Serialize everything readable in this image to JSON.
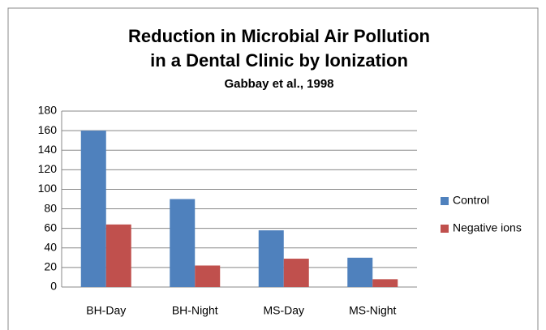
{
  "chart_data": {
    "type": "bar",
    "title": [
      "Reduction in Microbial Air Pollution",
      "in a Dental Clinic by Ionization"
    ],
    "subtitle": "Gabbay et al., 1998",
    "categories": [
      "BH-Day",
      "BH-Night",
      "MS-Day",
      "MS-Night"
    ],
    "series": [
      {
        "name": "Control",
        "color": "#4f81bd",
        "values": [
          160,
          90,
          58,
          30
        ]
      },
      {
        "name": "Negative ions",
        "color": "#c0504d",
        "values": [
          64,
          22,
          29,
          8
        ]
      }
    ],
    "ylim": [
      0,
      180
    ],
    "yticks": [
      0,
      20,
      40,
      60,
      80,
      100,
      120,
      140,
      160,
      180
    ],
    "grid": true,
    "legend": "right"
  }
}
